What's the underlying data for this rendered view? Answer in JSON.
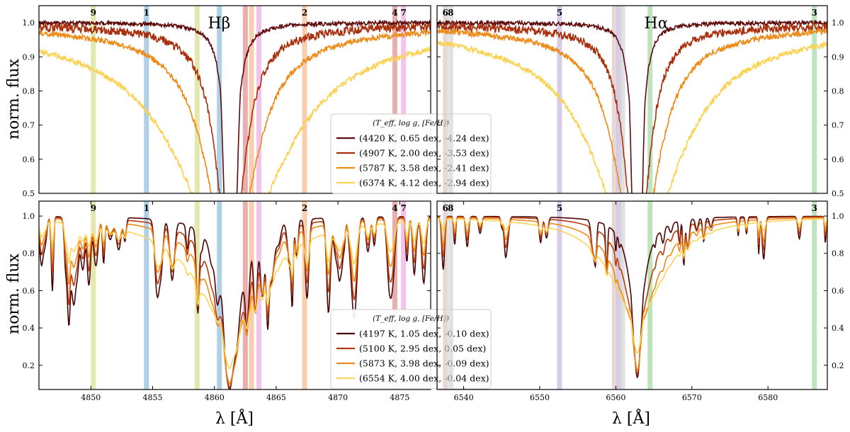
{
  "figure": {
    "ylabel": "norm. flux",
    "xlabel": "λ [Å]",
    "legend_header": "(T_eff, log g, [Fe/H])"
  },
  "chart_data": [
    {
      "type": "line",
      "panel": "top-left",
      "annotation": "Hβ",
      "xlim": [
        4845.8,
        4877.5
      ],
      "ylim": [
        0.5,
        1.05
      ],
      "xticks": [],
      "yticks": [
        0.5,
        0.6,
        0.7,
        0.8,
        0.9,
        1.0
      ],
      "ylabel": "norm. flux",
      "line_center": 4861.3,
      "bands": [
        {
          "label": "9",
          "x": 4850.2,
          "color": "#d9dd8c"
        },
        {
          "label": "1",
          "x": 4854.5,
          "color": "#8fbcdc"
        },
        {
          "label": "",
          "x": 4858.6,
          "color": "#d9dd8c"
        },
        {
          "label": "",
          "x": 4860.4,
          "color": "#8fbcdc"
        },
        {
          "label": "",
          "x": 4862.5,
          "color": "#e38b8b"
        },
        {
          "label": "",
          "x": 4863.0,
          "color": "#f6b98d"
        },
        {
          "label": "",
          "x": 4863.6,
          "color": "#efa9e3"
        },
        {
          "label": "2",
          "x": 4867.3,
          "color": "#f6b98d"
        },
        {
          "label": "4",
          "x": 4874.6,
          "color": "#e38b8b"
        },
        {
          "label": "7",
          "x": 4875.3,
          "color": "#efa9e3"
        }
      ],
      "series": [
        {
          "name": "(4420 K, 0.65 dex, -4.24 dex)",
          "color": "#5e0a0a",
          "depth": 0.99,
          "wcore": 0.45,
          "wwing": 0.5,
          "noise": 0.006
        },
        {
          "name": "(4907 K, 2.00 dex, -3.53 dex)",
          "color": "#a8300d",
          "depth": 0.96,
          "wcore": 0.55,
          "wwing": 1.3,
          "noise": 0.012
        },
        {
          "name": "(5787 K, 3.58 dex, -2.41 dex)",
          "color": "#ee8a16",
          "depth": 0.92,
          "wcore": 0.7,
          "wwing": 2.3,
          "noise": 0.008
        },
        {
          "name": "(6374 K, 4.12 dex, -2.94 dex)",
          "color": "#fbd14f",
          "depth": 0.85,
          "wcore": 0.9,
          "wwing": 5.0,
          "noise": 0.008
        }
      ]
    },
    {
      "type": "line",
      "panel": "top-right",
      "annotation": "Hα",
      "xlim": [
        6536.5,
        6587.8
      ],
      "ylim": [
        0.5,
        1.05
      ],
      "xticks": [],
      "yticks": [
        0.5,
        0.6,
        0.7,
        0.8,
        0.9,
        1.0
      ],
      "ylabel": "",
      "line_center": 6562.8,
      "bands": [
        {
          "label": "6",
          "x": 6537.6,
          "color": "#d9c9c3"
        },
        {
          "label": "8",
          "x": 6538.3,
          "color": "#d4d4d4"
        },
        {
          "label": "5",
          "x": 6552.6,
          "color": "#c7b7e0"
        },
        {
          "label": "",
          "x": 6559.8,
          "color": "#d9c9c3"
        },
        {
          "label": "",
          "x": 6560.4,
          "color": "#c7b7e0"
        },
        {
          "label": "",
          "x": 6560.9,
          "color": "#d4d4d4"
        },
        {
          "label": "",
          "x": 6564.5,
          "color": "#a3d9a3"
        },
        {
          "label": "3",
          "x": 6586.1,
          "color": "#a3d9a3"
        }
      ],
      "series": [
        {
          "name": "(4420 K, 0.65 dex, -4.24 dex)",
          "color": "#5e0a0a",
          "depth": 0.99,
          "wcore": 0.6,
          "wwing": 0.7,
          "noise": 0.006
        },
        {
          "name": "(4907 K, 2.00 dex, -3.53 dex)",
          "color": "#a8300d",
          "depth": 0.96,
          "wcore": 0.75,
          "wwing": 1.8,
          "noise": 0.012
        },
        {
          "name": "(5787 K, 3.58 dex, -2.41 dex)",
          "color": "#ee8a16",
          "depth": 0.92,
          "wcore": 0.9,
          "wwing": 3.2,
          "noise": 0.008
        },
        {
          "name": "(6374 K, 4.12 dex, -2.94 dex)",
          "color": "#fbd14f",
          "depth": 0.85,
          "wcore": 1.1,
          "wwing": 6.5,
          "noise": 0.008
        }
      ]
    },
    {
      "type": "line",
      "panel": "bottom-left",
      "annotation": "",
      "xlim": [
        4845.8,
        4877.5
      ],
      "ylim": [
        0.07,
        1.08
      ],
      "xticks": [
        4850,
        4855,
        4860,
        4865,
        4870,
        4875
      ],
      "yticks": [
        0.2,
        0.4,
        0.6,
        0.8,
        1.0
      ],
      "ylabel": "norm. flux",
      "line_center": 4861.3,
      "bands": [
        {
          "label": "9",
          "x": 4850.2,
          "color": "#d9dd8c"
        },
        {
          "label": "1",
          "x": 4854.5,
          "color": "#8fbcdc"
        },
        {
          "label": "",
          "x": 4858.6,
          "color": "#d9dd8c"
        },
        {
          "label": "",
          "x": 4860.4,
          "color": "#8fbcdc"
        },
        {
          "label": "",
          "x": 4862.5,
          "color": "#e38b8b"
        },
        {
          "label": "",
          "x": 4863.0,
          "color": "#f6b98d"
        },
        {
          "label": "",
          "x": 4863.6,
          "color": "#efa9e3"
        },
        {
          "label": "2",
          "x": 4867.3,
          "color": "#f6b98d"
        },
        {
          "label": "4",
          "x": 4874.6,
          "color": "#e38b8b"
        },
        {
          "label": "7",
          "x": 4875.3,
          "color": "#efa9e3"
        }
      ],
      "series": [
        {
          "name": "(4197 K, 1.05 dex, -0.10 dex)",
          "color": "#4a0404",
          "depth": 0.87,
          "wcore": 0.6,
          "wwing": 1.0,
          "metal": 0.55,
          "nlines": 70
        },
        {
          "name": "(5100 K, 2.95 dex, 0.05 dex)",
          "color": "#b73c0d",
          "depth": 0.87,
          "wcore": 0.7,
          "wwing": 1.6,
          "metal": 0.42,
          "nlines": 70
        },
        {
          "name": "(5873 K, 3.98 dex, -0.09 dex)",
          "color": "#ee8a16",
          "depth": 0.86,
          "wcore": 0.8,
          "wwing": 2.2,
          "metal": 0.3,
          "nlines": 70
        },
        {
          "name": "(6554 K, 4.00 dex, -0.04 dex)",
          "color": "#fdd458",
          "depth": 0.78,
          "wcore": 1.0,
          "wwing": 3.4,
          "metal": 0.18,
          "nlines": 70
        }
      ]
    },
    {
      "type": "line",
      "panel": "bottom-right",
      "annotation": "",
      "xlim": [
        6536.5,
        6587.8
      ],
      "ylim": [
        0.07,
        1.08
      ],
      "xticks": [
        6540,
        6550,
        6560,
        6570,
        6580
      ],
      "yticks": [
        0.2,
        0.4,
        0.6,
        0.8,
        1.0
      ],
      "ylabel": "",
      "line_center": 6562.8,
      "bands": [
        {
          "label": "6",
          "x": 6537.6,
          "color": "#d9c9c3"
        },
        {
          "label": "8",
          "x": 6538.3,
          "color": "#d4d4d4"
        },
        {
          "label": "5",
          "x": 6552.6,
          "color": "#c7b7e0"
        },
        {
          "label": "",
          "x": 6559.8,
          "color": "#d9c9c3"
        },
        {
          "label": "",
          "x": 6560.4,
          "color": "#c7b7e0"
        },
        {
          "label": "",
          "x": 6560.9,
          "color": "#d4d4d4"
        },
        {
          "label": "",
          "x": 6564.5,
          "color": "#a3d9a3"
        },
        {
          "label": "3",
          "x": 6586.1,
          "color": "#a3d9a3"
        }
      ],
      "series": [
        {
          "name": "(4197 K, 1.05 dex, -0.10 dex)",
          "color": "#4a0404",
          "depth": 0.82,
          "wcore": 0.7,
          "wwing": 1.2,
          "metal": 0.3,
          "nlines": 40
        },
        {
          "name": "(5100 K, 2.95 dex, 0.05 dex)",
          "color": "#b73c0d",
          "depth": 0.81,
          "wcore": 0.8,
          "wwing": 2.0,
          "metal": 0.22,
          "nlines": 40
        },
        {
          "name": "(5873 K, 3.98 dex, -0.09 dex)",
          "color": "#ee8a16",
          "depth": 0.8,
          "wcore": 0.9,
          "wwing": 3.0,
          "metal": 0.15,
          "nlines": 40
        },
        {
          "name": "(6554 K, 4.00 dex, -0.04 dex)",
          "color": "#fdd458",
          "depth": 0.72,
          "wcore": 1.1,
          "wwing": 4.2,
          "metal": 0.06,
          "nlines": 40
        }
      ]
    }
  ]
}
